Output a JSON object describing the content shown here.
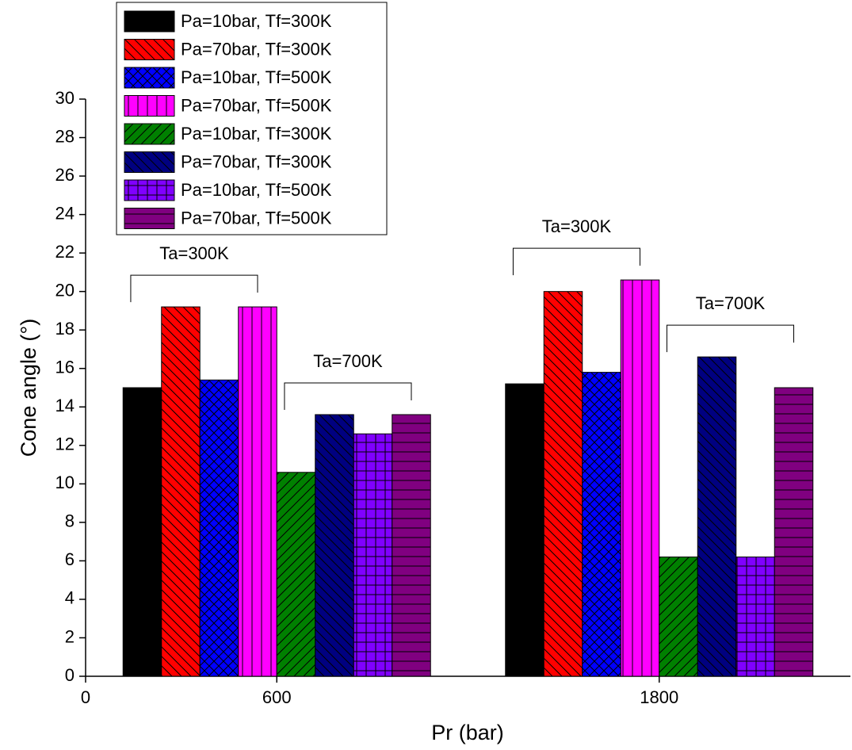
{
  "chart_data": {
    "type": "bar",
    "xlabel": "Pr (bar)",
    "ylabel": "Cone angle (°)",
    "x": [
      600,
      1800
    ],
    "xlim": [
      0,
      2400
    ],
    "xticks": [
      0,
      600,
      1800
    ],
    "ylim": [
      0,
      30
    ],
    "yticks": [
      0,
      2,
      4,
      6,
      8,
      10,
      12,
      14,
      16,
      18,
      20,
      22,
      24,
      26,
      28,
      30
    ],
    "legend": "top-left",
    "series": [
      {
        "name": "Pa=10bar, Tf=300K",
        "color": "#000000",
        "pattern": "diag-up",
        "values": [
          15,
          15.2
        ]
      },
      {
        "name": "Pa=70bar, Tf=300K",
        "color": "#ff0000",
        "pattern": "diag-down",
        "values": [
          19.2,
          20
        ]
      },
      {
        "name": "Pa=10bar, Tf=500K",
        "color": "#0000ff",
        "pattern": "cross-diag",
        "values": [
          15.4,
          15.8
        ]
      },
      {
        "name": "Pa=70bar, Tf=500K",
        "color": "#ff00ff",
        "pattern": "vertical",
        "values": [
          19.2,
          20.6
        ]
      },
      {
        "name": "Pa=10bar, Tf=300K",
        "color": "#008000",
        "pattern": "diag-up",
        "values": [
          10.6,
          6.2
        ]
      },
      {
        "name": "Pa=70bar, Tf=300K",
        "color": "#000080",
        "pattern": "diag-down",
        "values": [
          13.6,
          16.6
        ]
      },
      {
        "name": "Pa=10bar, Tf=500K",
        "color": "#8000ff",
        "pattern": "grid",
        "values": [
          12.6,
          6.2
        ]
      },
      {
        "name": "Pa=70bar, Tf=500K",
        "color": "#800080",
        "pattern": "horizontal",
        "values": [
          13.6,
          15
        ]
      }
    ],
    "annotations": [
      "Ta=300K",
      "Ta=700K",
      "Ta=300K",
      "Ta=700K"
    ]
  }
}
